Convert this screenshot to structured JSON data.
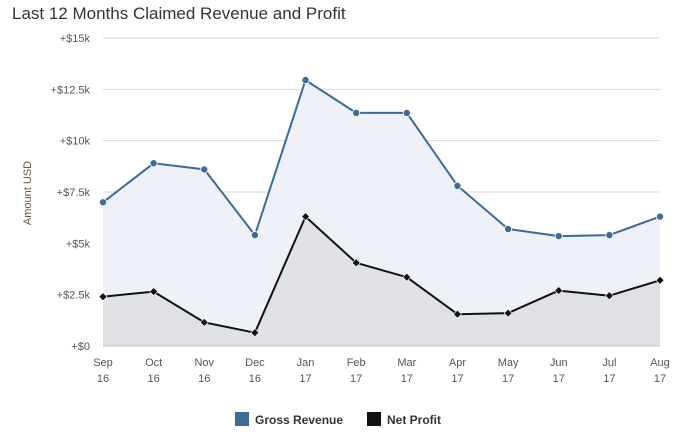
{
  "chart_data": {
    "type": "area",
    "title": "Last 12 Months Claimed Revenue and Profit",
    "ylabel": "Amount USD",
    "xlabel": "",
    "ylim": [
      0,
      15000
    ],
    "yticks": [
      {
        "value": 0,
        "label": "+$0"
      },
      {
        "value": 2500,
        "label": "+$2.5k"
      },
      {
        "value": 5000,
        "label": "+$5k"
      },
      {
        "value": 7500,
        "label": "+$7.5k"
      },
      {
        "value": 10000,
        "label": "+$10k"
      },
      {
        "value": 12500,
        "label": "+$12.5k"
      },
      {
        "value": 15000,
        "label": "+$15k"
      }
    ],
    "categories": [
      {
        "month": "Sep",
        "year": "16"
      },
      {
        "month": "Oct",
        "year": "16"
      },
      {
        "month": "Nov",
        "year": "16"
      },
      {
        "month": "Dec",
        "year": "16"
      },
      {
        "month": "Jan",
        "year": "17"
      },
      {
        "month": "Feb",
        "year": "17"
      },
      {
        "month": "Mar",
        "year": "17"
      },
      {
        "month": "Apr",
        "year": "17"
      },
      {
        "month": "May",
        "year": "17"
      },
      {
        "month": "Jun",
        "year": "17"
      },
      {
        "month": "Jul",
        "year": "17"
      },
      {
        "month": "Aug",
        "year": "17"
      }
    ],
    "grid": true,
    "legend_position": "bottom-center",
    "series": [
      {
        "name": "Gross Revenue",
        "color": "#3d6a99",
        "fill": "#eef2f8",
        "marker": "circle",
        "values": [
          7000,
          8900,
          8600,
          5400,
          12950,
          11350,
          11350,
          7800,
          5700,
          5350,
          5400,
          6300
        ]
      },
      {
        "name": "Net Profit",
        "color": "#111111",
        "fill": "#dfe1e4",
        "marker": "diamond",
        "values": [
          2400,
          2650,
          1150,
          650,
          6300,
          4050,
          3350,
          1550,
          1600,
          2700,
          2450,
          3200
        ]
      }
    ]
  }
}
